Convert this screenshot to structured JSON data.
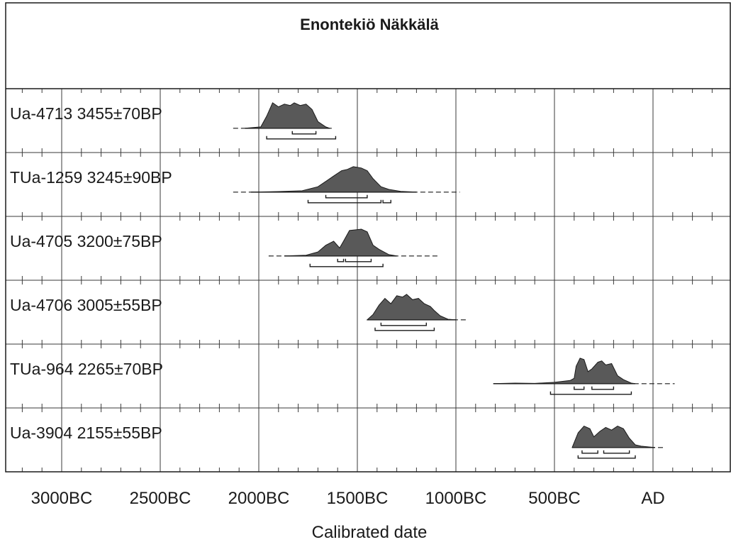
{
  "chart_data": {
    "type": "area",
    "title": "Enontekiö Näkkälä",
    "xlabel": "Calibrated date",
    "ylabel": "",
    "x_units": "year BC/AD (negative = BC)",
    "xlim": [
      -3500,
      400
    ],
    "x_tick_labels": [
      {
        "year": -3000,
        "label": "3000BC"
      },
      {
        "year": -2500,
        "label": "2500BC"
      },
      {
        "year": -2000,
        "label": "2000BC"
      },
      {
        "year": -1500,
        "label": "1500BC"
      },
      {
        "year": -1000,
        "label": "1000BC"
      },
      {
        "year": -500,
        "label": "500BC"
      },
      {
        "year": 0,
        "label": "AD"
      }
    ],
    "grid": true,
    "series": [
      {
        "name": "Ua-4713  3455±70BP",
        "lab_code": "Ua-4713",
        "bp_date": "3455±70BP",
        "tail": [
          -2130,
          -1620
        ],
        "distribution": [
          [
            -2070,
            0
          ],
          [
            -1990,
            0.05
          ],
          [
            -1960,
            0.45
          ],
          [
            -1930,
            0.95
          ],
          [
            -1900,
            0.8
          ],
          [
            -1870,
            0.9
          ],
          [
            -1840,
            0.85
          ],
          [
            -1820,
            0.95
          ],
          [
            -1790,
            0.85
          ],
          [
            -1760,
            0.9
          ],
          [
            -1730,
            0.7
          ],
          [
            -1700,
            0.25
          ],
          [
            -1660,
            0.05
          ],
          [
            -1640,
            0
          ]
        ],
        "range_1sigma": [
          [
            -1830,
            -1710
          ]
        ],
        "range_2sigma": [
          [
            -1960,
            -1610
          ]
        ]
      },
      {
        "name": "TUa-1259  3245±90BP",
        "lab_code": "TUa-1259",
        "bp_date": "3245±90BP",
        "tail": [
          -2130,
          -980
        ],
        "distribution": [
          [
            -2040,
            0
          ],
          [
            -1900,
            0.02
          ],
          [
            -1780,
            0.05
          ],
          [
            -1700,
            0.2
          ],
          [
            -1660,
            0.4
          ],
          [
            -1620,
            0.6
          ],
          [
            -1580,
            0.8
          ],
          [
            -1550,
            0.85
          ],
          [
            -1520,
            0.95
          ],
          [
            -1480,
            0.9
          ],
          [
            -1450,
            0.8
          ],
          [
            -1420,
            0.5
          ],
          [
            -1380,
            0.2
          ],
          [
            -1340,
            0.1
          ],
          [
            -1280,
            0.03
          ],
          [
            -1200,
            0
          ]
        ],
        "range_1sigma": [
          [
            -1660,
            -1450
          ]
        ],
        "range_2sigma": [
          [
            -1750,
            -1380
          ],
          [
            -1370,
            -1330
          ]
        ]
      },
      {
        "name": "Ua-4705  3200±75BP",
        "lab_code": "Ua-4705",
        "bp_date": "3200±75BP",
        "tail": [
          -1950,
          -1090
        ],
        "distribution": [
          [
            -1870,
            0
          ],
          [
            -1760,
            0.03
          ],
          [
            -1700,
            0.15
          ],
          [
            -1660,
            0.4
          ],
          [
            -1620,
            0.55
          ],
          [
            -1590,
            0.3
          ],
          [
            -1570,
            0.55
          ],
          [
            -1540,
            0.95
          ],
          [
            -1480,
            1.0
          ],
          [
            -1450,
            0.9
          ],
          [
            -1420,
            0.4
          ],
          [
            -1390,
            0.25
          ],
          [
            -1340,
            0.05
          ],
          [
            -1300,
            0
          ]
        ],
        "range_1sigma": [
          [
            -1600,
            -1570
          ],
          [
            -1560,
            -1430
          ]
        ],
        "range_2sigma": [
          [
            -1740,
            -1370
          ]
        ]
      },
      {
        "name": "Ua-4706  3005±55BP",
        "lab_code": "Ua-4706",
        "bp_date": "3005±55BP",
        "tail": [
          -1450,
          -950
        ],
        "distribution": [
          [
            -1450,
            0
          ],
          [
            -1420,
            0.2
          ],
          [
            -1390,
            0.55
          ],
          [
            -1360,
            0.8
          ],
          [
            -1330,
            0.6
          ],
          [
            -1300,
            0.9
          ],
          [
            -1270,
            0.85
          ],
          [
            -1250,
            0.95
          ],
          [
            -1220,
            0.75
          ],
          [
            -1190,
            0.8
          ],
          [
            -1160,
            0.6
          ],
          [
            -1130,
            0.5
          ],
          [
            -1110,
            0.35
          ],
          [
            -1080,
            0.15
          ],
          [
            -1040,
            0.02
          ],
          [
            -1000,
            0
          ]
        ],
        "range_1sigma": [
          [
            -1380,
            -1150
          ]
        ],
        "range_2sigma": [
          [
            -1410,
            -1110
          ]
        ]
      },
      {
        "name": "TUa-964  2265±70BP",
        "lab_code": "TUa-964",
        "bp_date": "2265±70BP",
        "tail": [
          -810,
          110
        ],
        "distribution": [
          [
            -810,
            0
          ],
          [
            -700,
            0.02
          ],
          [
            -600,
            0.01
          ],
          [
            -500,
            0.05
          ],
          [
            -420,
            0.12
          ],
          [
            -400,
            0.2
          ],
          [
            -390,
            0.65
          ],
          [
            -370,
            0.95
          ],
          [
            -350,
            0.9
          ],
          [
            -330,
            0.45
          ],
          [
            -310,
            0.55
          ],
          [
            -280,
            0.8
          ],
          [
            -260,
            0.85
          ],
          [
            -240,
            0.7
          ],
          [
            -210,
            0.75
          ],
          [
            -180,
            0.3
          ],
          [
            -150,
            0.15
          ],
          [
            -110,
            0.02
          ],
          [
            -90,
            0
          ]
        ],
        "range_1sigma": [
          [
            -400,
            -350
          ],
          [
            -310,
            -200
          ]
        ],
        "range_2sigma": [
          [
            -520,
            -110
          ]
        ]
      },
      {
        "name": "Ua-3904  2155±55BP",
        "lab_code": "Ua-3904",
        "bp_date": "2155±55BP",
        "tail": [
          -410,
          60
        ],
        "distribution": [
          [
            -410,
            0
          ],
          [
            -380,
            0.55
          ],
          [
            -350,
            0.8
          ],
          [
            -320,
            0.7
          ],
          [
            -300,
            0.4
          ],
          [
            -270,
            0.6
          ],
          [
            -240,
            0.75
          ],
          [
            -210,
            0.65
          ],
          [
            -180,
            0.8
          ],
          [
            -150,
            0.7
          ],
          [
            -120,
            0.35
          ],
          [
            -90,
            0.1
          ],
          [
            -60,
            0.05
          ],
          [
            -20,
            0.02
          ],
          [
            10,
            0
          ]
        ],
        "range_1sigma": [
          [
            -360,
            -280
          ],
          [
            -250,
            -120
          ]
        ],
        "range_2sigma": [
          [
            -380,
            -90
          ]
        ]
      }
    ],
    "colors": {
      "fill": "#595959",
      "line": "#1a1a1a",
      "grid": "#3a3a3a",
      "background": "#ffffff"
    }
  }
}
